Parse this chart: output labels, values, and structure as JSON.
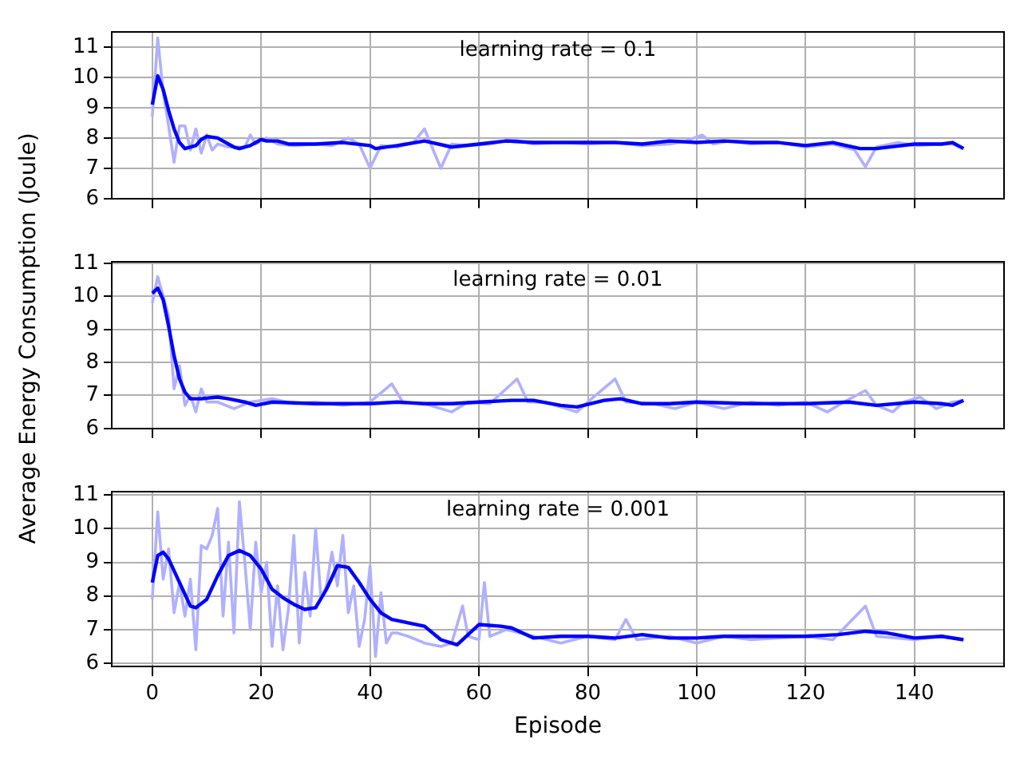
{
  "chart_data": [
    {
      "type": "line",
      "annotations": [
        "learning rate = 0.1"
      ],
      "xlim": [
        -7.45,
        156.45
      ],
      "xticks": [
        0,
        20,
        40,
        60,
        80,
        100,
        120,
        140
      ],
      "ylim": [
        6,
        11.5
      ],
      "yticks": [
        6,
        7,
        8,
        9,
        10,
        11
      ],
      "grid": true,
      "tick_labels": "y",
      "series": [
        {
          "color": "#b0b0ff",
          "x": [
            0,
            1,
            2,
            3,
            4,
            5,
            6,
            7,
            8,
            9,
            10,
            11,
            12,
            14,
            17,
            18,
            19,
            21,
            23,
            26,
            30,
            33,
            36,
            38,
            40,
            42,
            45,
            48,
            50,
            53,
            55,
            58,
            62,
            66,
            70,
            75,
            80,
            85,
            90,
            95,
            98,
            101,
            103,
            106,
            110,
            115,
            120,
            125,
            129,
            131,
            133,
            137,
            140,
            145,
            147,
            149
          ],
          "values": [
            8.7,
            11.3,
            9.5,
            8.4,
            7.2,
            8.4,
            8.4,
            7.6,
            8.3,
            7.5,
            8.1,
            7.6,
            7.8,
            7.7,
            7.7,
            8.1,
            7.8,
            8.0,
            7.8,
            7.75,
            7.8,
            7.75,
            8.0,
            7.8,
            7.0,
            7.75,
            7.7,
            7.85,
            8.3,
            7.0,
            7.8,
            7.75,
            7.8,
            7.95,
            7.8,
            7.85,
            7.8,
            7.85,
            7.75,
            7.8,
            7.9,
            8.1,
            7.8,
            7.9,
            7.8,
            7.85,
            7.7,
            7.8,
            7.6,
            7.05,
            7.7,
            7.85,
            7.75,
            7.8,
            7.8,
            7.65
          ]
        },
        {
          "color": "#0000ff",
          "x": [
            0,
            1,
            2,
            3,
            4,
            5,
            6,
            8,
            9,
            10,
            12,
            14,
            15,
            16,
            18,
            20,
            21,
            23,
            25,
            30,
            35,
            40,
            41,
            45,
            50,
            55,
            60,
            65,
            70,
            80,
            85,
            90,
            95,
            100,
            105,
            110,
            115,
            120,
            125,
            130,
            133,
            140,
            145,
            147,
            149
          ],
          "values": [
            9.1,
            10.05,
            9.6,
            8.9,
            8.3,
            7.85,
            7.65,
            7.75,
            7.95,
            8.05,
            8.0,
            7.8,
            7.7,
            7.65,
            7.75,
            7.95,
            7.9,
            7.9,
            7.8,
            7.8,
            7.85,
            7.75,
            7.65,
            7.75,
            7.9,
            7.7,
            7.8,
            7.9,
            7.85,
            7.85,
            7.85,
            7.8,
            7.9,
            7.85,
            7.9,
            7.85,
            7.85,
            7.75,
            7.85,
            7.65,
            7.65,
            7.8,
            7.8,
            7.85,
            7.65
          ]
        }
      ]
    },
    {
      "type": "line",
      "annotations": [
        "learning rate = 0.01"
      ],
      "ylabel": "Average Energy Consumption (Joule)",
      "xlim": [
        -7.45,
        156.45
      ],
      "xticks": [
        0,
        20,
        40,
        60,
        80,
        100,
        120,
        140
      ],
      "ylim": [
        6,
        11.05
      ],
      "yticks": [
        6,
        7,
        8,
        9,
        10,
        11
      ],
      "grid": true,
      "tick_labels": "y",
      "series": [
        {
          "color": "#b0b0ff",
          "x": [
            0,
            1,
            2,
            3,
            4,
            5,
            6,
            7,
            8,
            9,
            10,
            12,
            15,
            18,
            22,
            26,
            30,
            35,
            40,
            44,
            46,
            50,
            55,
            58,
            62,
            67,
            69,
            72,
            78,
            80,
            85,
            87,
            92,
            96,
            100,
            105,
            110,
            115,
            120,
            124,
            127,
            131,
            133,
            136,
            138,
            141,
            144,
            147,
            149
          ],
          "values": [
            9.8,
            10.6,
            10.0,
            9.4,
            7.2,
            7.9,
            6.7,
            7.0,
            6.5,
            7.2,
            6.8,
            6.8,
            6.6,
            6.8,
            6.9,
            6.75,
            6.8,
            6.7,
            6.8,
            7.35,
            6.8,
            6.75,
            6.5,
            6.8,
            6.75,
            7.5,
            6.8,
            6.8,
            6.5,
            6.8,
            7.5,
            6.8,
            6.75,
            6.6,
            6.8,
            6.6,
            6.8,
            6.7,
            6.8,
            6.5,
            6.8,
            7.15,
            6.7,
            6.5,
            6.8,
            6.95,
            6.6,
            6.8,
            6.85
          ]
        },
        {
          "color": "#0000ff",
          "x": [
            0,
            1,
            2,
            3,
            4,
            5,
            6,
            7,
            9,
            12,
            14,
            17,
            19,
            22,
            30,
            40,
            45,
            50,
            55,
            60,
            66,
            70,
            75,
            78,
            83,
            86,
            90,
            95,
            100,
            110,
            120,
            128,
            133,
            140,
            145,
            147,
            149
          ],
          "values": [
            10.1,
            10.25,
            9.9,
            9.1,
            8.2,
            7.5,
            7.1,
            6.9,
            6.9,
            6.95,
            6.9,
            6.8,
            6.7,
            6.8,
            6.75,
            6.75,
            6.8,
            6.75,
            6.75,
            6.8,
            6.85,
            6.85,
            6.7,
            6.65,
            6.85,
            6.9,
            6.75,
            6.75,
            6.8,
            6.75,
            6.75,
            6.8,
            6.7,
            6.8,
            6.75,
            6.7,
            6.85
          ]
        }
      ]
    },
    {
      "type": "line",
      "annotations": [
        "learning rate = 0.001"
      ],
      "xlabel": "Episode",
      "xlim": [
        -7.45,
        156.45
      ],
      "xticks": [
        0,
        20,
        40,
        60,
        80,
        100,
        120,
        140
      ],
      "ylim": [
        5.9,
        11.1
      ],
      "yticks": [
        6,
        7,
        8,
        9,
        10,
        11
      ],
      "grid": true,
      "series": [
        {
          "color": "#b0b0ff",
          "x": [
            0,
            1,
            2,
            3,
            4,
            5,
            6,
            7,
            8,
            9,
            10,
            11,
            12,
            13,
            14,
            15,
            16,
            17,
            18,
            19,
            20,
            21,
            22,
            23,
            24,
            25,
            26,
            27,
            28,
            29,
            30,
            31,
            32,
            33,
            34,
            35,
            36,
            37,
            38,
            39,
            40,
            41,
            42,
            43,
            44,
            45,
            47,
            50,
            53,
            55,
            57,
            58,
            60,
            61,
            62,
            65,
            70,
            75,
            80,
            85,
            87,
            89,
            95,
            100,
            105,
            110,
            120,
            125,
            131,
            133,
            140,
            145,
            149
          ],
          "values": [
            7.9,
            10.5,
            8.5,
            9.4,
            7.5,
            8.4,
            7.4,
            8.5,
            6.4,
            9.5,
            9.4,
            9.8,
            10.6,
            7.4,
            9.6,
            6.9,
            10.8,
            9.0,
            7.0,
            9.6,
            8.1,
            9.0,
            6.5,
            8.3,
            6.4,
            7.6,
            9.8,
            6.6,
            8.7,
            7.4,
            10.0,
            7.9,
            8.3,
            9.3,
            8.3,
            9.8,
            7.5,
            8.3,
            6.5,
            7.3,
            8.9,
            6.2,
            8.1,
            6.6,
            6.9,
            6.9,
            6.8,
            6.6,
            6.5,
            6.6,
            7.7,
            6.8,
            6.7,
            8.4,
            6.8,
            7.0,
            6.8,
            6.6,
            6.8,
            6.7,
            7.3,
            6.7,
            6.8,
            6.6,
            6.8,
            6.7,
            6.8,
            6.7,
            7.7,
            6.8,
            6.7,
            6.8,
            6.7
          ]
        },
        {
          "color": "#0000ff",
          "x": [
            0,
            1,
            2,
            3,
            5,
            7,
            8,
            10,
            12,
            14,
            16,
            18,
            20,
            22,
            24,
            26,
            28,
            30,
            32,
            34,
            36,
            38,
            40,
            42,
            44,
            47,
            50,
            53,
            56,
            58,
            60,
            64,
            66,
            70,
            75,
            80,
            85,
            90,
            95,
            100,
            105,
            110,
            120,
            126,
            131,
            135,
            140,
            145,
            149
          ],
          "values": [
            8.4,
            9.2,
            9.3,
            9.1,
            8.4,
            7.7,
            7.65,
            7.9,
            8.6,
            9.2,
            9.35,
            9.2,
            8.8,
            8.2,
            7.95,
            7.75,
            7.6,
            7.65,
            8.2,
            8.9,
            8.85,
            8.4,
            7.9,
            7.5,
            7.3,
            7.2,
            7.1,
            6.7,
            6.55,
            6.85,
            7.15,
            7.1,
            7.05,
            6.75,
            6.8,
            6.8,
            6.75,
            6.85,
            6.75,
            6.75,
            6.8,
            6.8,
            6.8,
            6.85,
            6.95,
            6.9,
            6.75,
            6.8,
            6.7
          ]
        }
      ]
    }
  ]
}
